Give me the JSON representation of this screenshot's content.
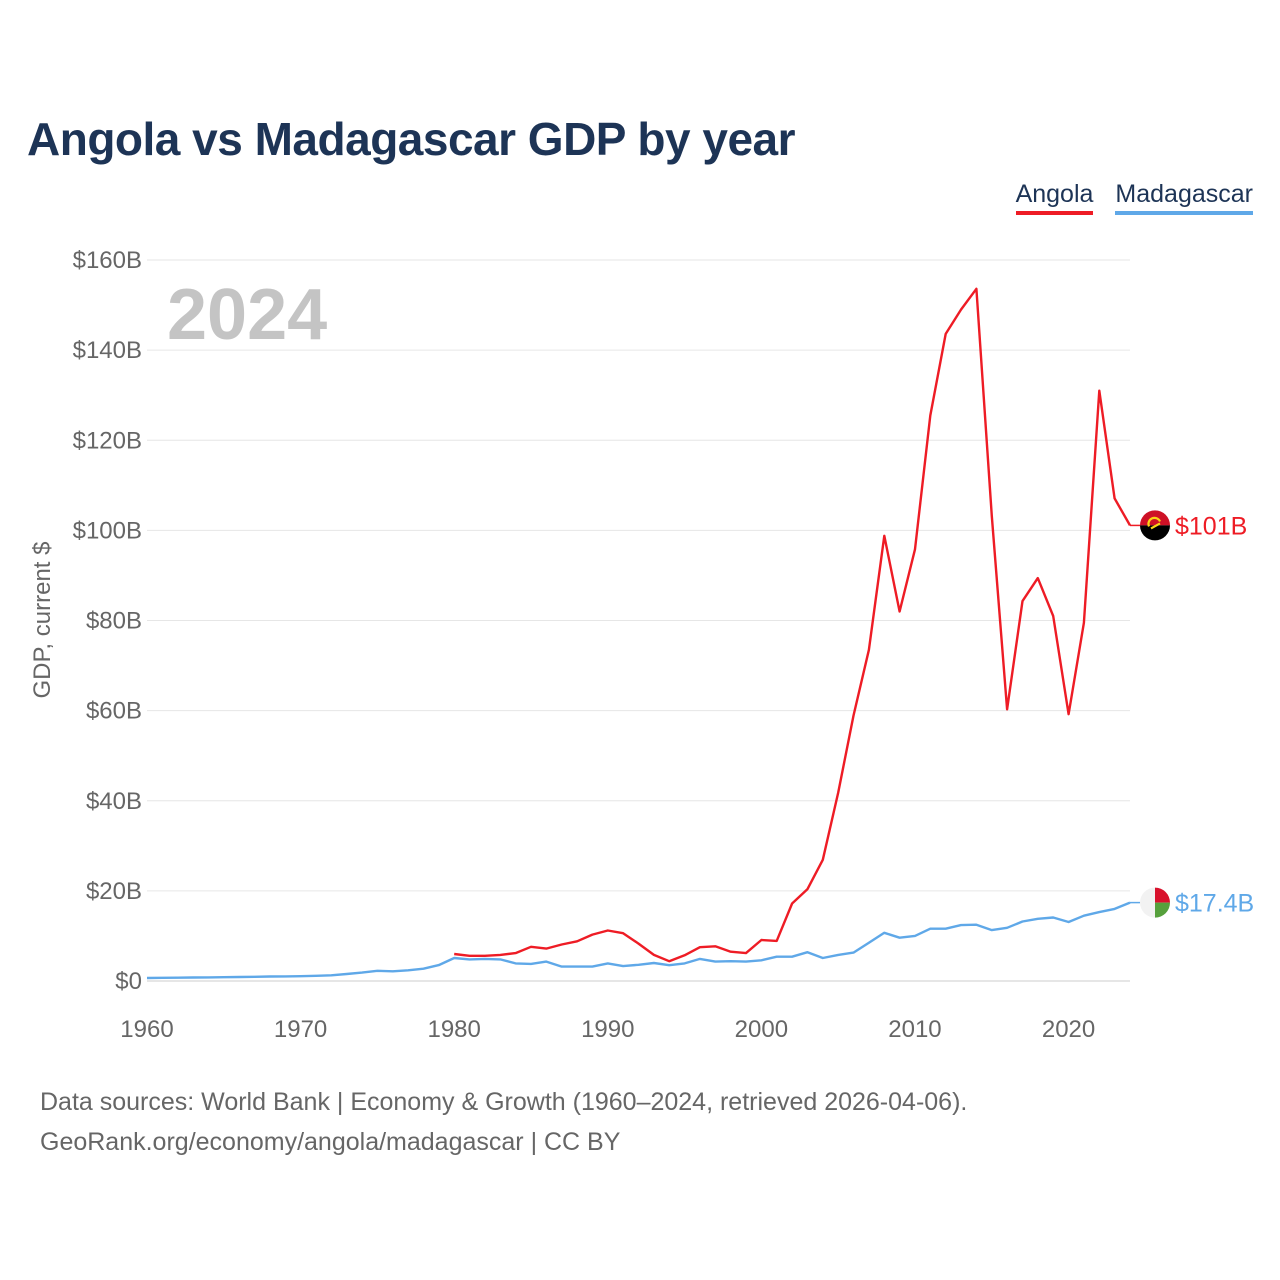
{
  "title": "Angola vs Madagascar GDP by year",
  "legend": [
    {
      "label": "Angola",
      "color": "#ee1c25"
    },
    {
      "label": "Madagascar",
      "color": "#5fa8e8"
    }
  ],
  "source": {
    "line1": "Data sources: World Bank | Economy & Growth (1960–2024, retrieved 2026-04-06).",
    "line2": "GeoRank.org/economy/angola/madagascar | CC BY"
  },
  "flags": {
    "angola": {
      "top": "#ce1126",
      "bottom": "#000000",
      "emblem": "#f9d616"
    },
    "madagascar": {
      "white": "#f2f2f2",
      "red": "#d8112c",
      "green": "#56a03c"
    }
  },
  "chart_data": {
    "type": "line",
    "title": "Angola vs Madagascar GDP by year",
    "year_label": "2024",
    "xlabel": "",
    "ylabel": "GDP, current $",
    "xlim": [
      1960,
      2024
    ],
    "ylim": [
      0,
      160
    ],
    "yunit": "billion USD",
    "xticks": [
      1960,
      1970,
      1980,
      1990,
      2000,
      2010,
      2020
    ],
    "yticks": [
      {
        "value": 0,
        "label": "$0"
      },
      {
        "value": 20,
        "label": "$20B"
      },
      {
        "value": 40,
        "label": "$40B"
      },
      {
        "value": 60,
        "label": "$60B"
      },
      {
        "value": 80,
        "label": "$80B"
      },
      {
        "value": 100,
        "label": "$100B"
      },
      {
        "value": 120,
        "label": "$120B"
      },
      {
        "value": 140,
        "label": "$140B"
      },
      {
        "value": 160,
        "label": "$160B"
      }
    ],
    "grid": true,
    "legend_position": "top-right",
    "series": [
      {
        "name": "Angola",
        "key": "angola",
        "color": "#ee1c25",
        "end_label": "$101B",
        "x": [
          1980,
          1981,
          1982,
          1983,
          1984,
          1985,
          1986,
          1987,
          1988,
          1989,
          1990,
          1991,
          1992,
          1993,
          1994,
          1995,
          1996,
          1997,
          1998,
          1999,
          2000,
          2001,
          2002,
          2003,
          2004,
          2005,
          2006,
          2007,
          2008,
          2009,
          2010,
          2011,
          2012,
          2013,
          2014,
          2015,
          2016,
          2017,
          2018,
          2019,
          2020,
          2021,
          2022,
          2023,
          2024
        ],
        "values": [
          6.0,
          5.6,
          5.6,
          5.8,
          6.2,
          7.6,
          7.2,
          8.1,
          8.8,
          10.3,
          11.2,
          10.6,
          8.3,
          5.8,
          4.4,
          5.7,
          7.5,
          7.7,
          6.5,
          6.2,
          9.1,
          8.9,
          17.2,
          20.4,
          26.9,
          41.8,
          58.9,
          73.5,
          98.8,
          82.0,
          95.8,
          125.5,
          143.6,
          149.0,
          153.6,
          103.2,
          60.3,
          84.3,
          89.4,
          81.0,
          59.2,
          79.5,
          131.0,
          107.1,
          101.1
        ]
      },
      {
        "name": "Madagascar",
        "key": "madagascar",
        "color": "#5fa8e8",
        "end_label": "$17.4B",
        "x": [
          1960,
          1961,
          1962,
          1963,
          1964,
          1965,
          1966,
          1967,
          1968,
          1969,
          1970,
          1971,
          1972,
          1973,
          1974,
          1975,
          1976,
          1977,
          1978,
          1979,
          1980,
          1981,
          1982,
          1983,
          1984,
          1985,
          1986,
          1987,
          1988,
          1989,
          1990,
          1991,
          1992,
          1993,
          1994,
          1995,
          1996,
          1997,
          1998,
          1999,
          2000,
          2001,
          2002,
          2003,
          2004,
          2005,
          2006,
          2007,
          2008,
          2009,
          2010,
          2011,
          2012,
          2013,
          2014,
          2015,
          2016,
          2017,
          2018,
          2019,
          2020,
          2021,
          2022,
          2023,
          2024
        ],
        "values": [
          0.67,
          0.71,
          0.74,
          0.78,
          0.8,
          0.84,
          0.89,
          0.93,
          0.99,
          1.03,
          1.06,
          1.15,
          1.27,
          1.55,
          1.86,
          2.27,
          2.15,
          2.37,
          2.73,
          3.53,
          5.1,
          4.8,
          4.9,
          4.8,
          3.9,
          3.8,
          4.3,
          3.2,
          3.2,
          3.2,
          3.9,
          3.3,
          3.6,
          4.0,
          3.5,
          3.9,
          4.9,
          4.3,
          4.4,
          4.3,
          4.6,
          5.4,
          5.4,
          6.4,
          5.1,
          5.8,
          6.3,
          8.5,
          10.7,
          9.6,
          10.0,
          11.6,
          11.6,
          12.4,
          12.5,
          11.3,
          11.8,
          13.2,
          13.8,
          14.1,
          13.1,
          14.5,
          15.3,
          16.0,
          17.4
        ]
      }
    ]
  }
}
